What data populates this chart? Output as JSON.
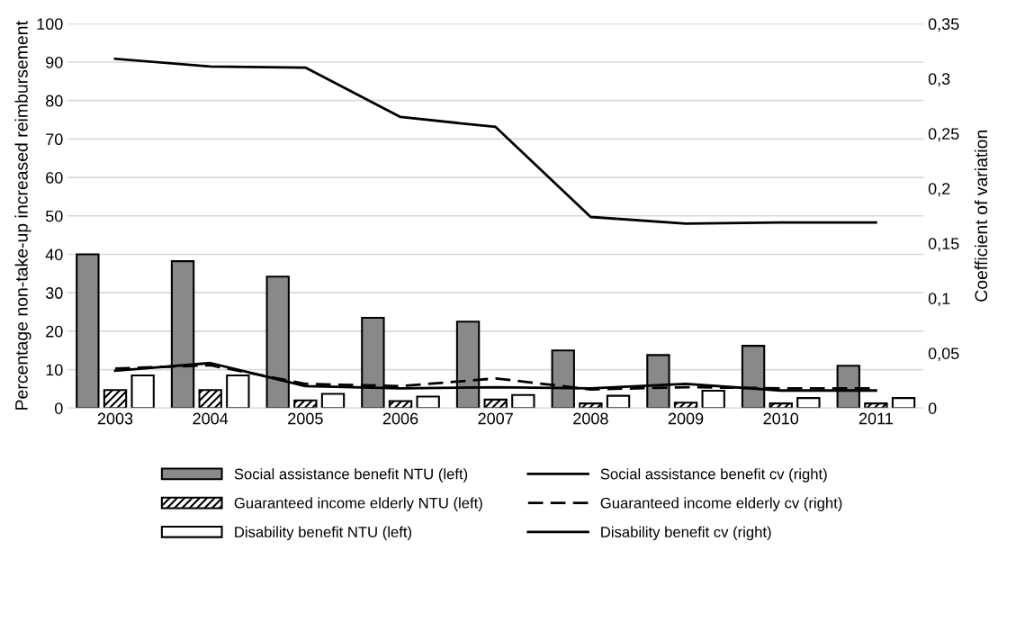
{
  "chart_data": {
    "type": "bar",
    "ylabel": "Percentage non-take-up increased reimbursement",
    "y2label": "Coefficient of variation",
    "categories": [
      "2003",
      "2004",
      "2005",
      "2006",
      "2007",
      "2008",
      "2009",
      "2010",
      "2011"
    ],
    "series": [
      {
        "name": "Social assistance benefit NTU (left)",
        "color": "#898989",
        "values": [
          40,
          38.2,
          34.2,
          23.5,
          22.5,
          15,
          13.8,
          16.2,
          11
        ]
      },
      {
        "name": "Guaranteed income elderly NTU (left)",
        "color": "#000000",
        "values": [
          4.7,
          4.7,
          2,
          1.8,
          2.2,
          1.2,
          1.4,
          1.2,
          1.2
        ]
      },
      {
        "name": "Disability benefit NTU (left)",
        "color": "#ffffff",
        "values": [
          8.5,
          8.5,
          3.7,
          3,
          3.4,
          3.2,
          4.5,
          2.6,
          2.6
        ]
      },
      {
        "name": "Social assistance benefit cv (right)",
        "type": "line",
        "axis": "y2",
        "color": "#000000",
        "line_style": "solid",
        "values": [
          0.318,
          0.311,
          0.31,
          0.265,
          0.256,
          0.174,
          0.168,
          0.169,
          0.169
        ]
      },
      {
        "name": "Guaranteed income elderly cv (right)",
        "type": "line",
        "axis": "y2",
        "color": "#000000",
        "line_style": "dashed",
        "values": [
          0.036,
          0.039,
          0.022,
          0.02,
          0.027,
          0.017,
          0.019,
          0.018,
          0.018
        ]
      },
      {
        "name": "Disability benefit cv (right)",
        "type": "line",
        "axis": "y2",
        "color": "#000000",
        "line_style": "solid",
        "values": [
          0.034,
          0.041,
          0.02,
          0.018,
          0.019,
          0.018,
          0.022,
          0.016,
          0.016
        ]
      }
    ],
    "ylim": [
      0,
      100
    ],
    "yticks": [
      0,
      10,
      20,
      30,
      40,
      50,
      60,
      70,
      80,
      90,
      100
    ],
    "y2lim": [
      0,
      0.35
    ],
    "y2ticks": [
      0,
      {
        "value": 0.05,
        "label": "0,05"
      },
      {
        "value": 0.1,
        "label": "0,1"
      },
      {
        "value": 0.15,
        "label": "0,15"
      },
      {
        "value": 0.2,
        "label": "0,2"
      },
      {
        "value": 0.25,
        "label": "0,25"
      },
      {
        "value": 0.3,
        "label": "0,3"
      },
      {
        "value": 0.35,
        "label": "0,35"
      }
    ],
    "grid": "y",
    "legend": "bottom"
  }
}
